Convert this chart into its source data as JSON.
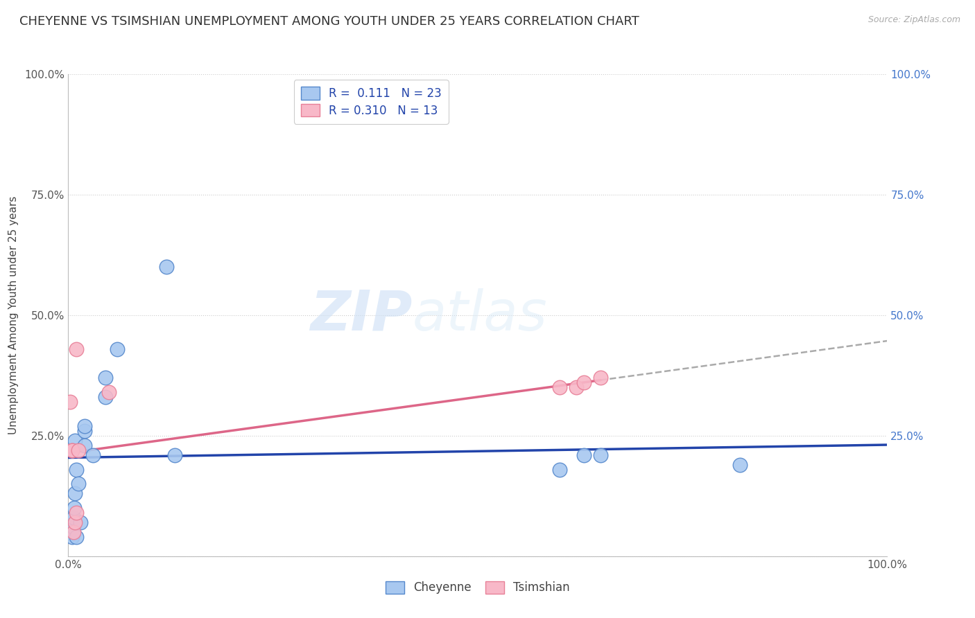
{
  "title": "CHEYENNE VS TSIMSHIAN UNEMPLOYMENT AMONG YOUTH UNDER 25 YEARS CORRELATION CHART",
  "source": "Source: ZipAtlas.com",
  "ylabel": "Unemployment Among Youth under 25 years",
  "xlim": [
    0.0,
    1.0
  ],
  "ylim": [
    0.0,
    1.0
  ],
  "watermark_zip": "ZIP",
  "watermark_atlas": "atlas",
  "cheyenne_color": "#a8c8f0",
  "tsimshian_color": "#f8b8c8",
  "cheyenne_edge_color": "#5588cc",
  "tsimshian_edge_color": "#e88098",
  "cheyenne_line_color": "#2244aa",
  "tsimshian_line_color": "#dd6688",
  "R_cheyenne": 0.111,
  "N_cheyenne": 23,
  "R_tsimshian": 0.31,
  "N_tsimshian": 13,
  "cheyenne_x": [
    0.005,
    0.006,
    0.006,
    0.007,
    0.008,
    0.008,
    0.01,
    0.01,
    0.012,
    0.015,
    0.02,
    0.02,
    0.02,
    0.03,
    0.045,
    0.045,
    0.06,
    0.12,
    0.13,
    0.6,
    0.63,
    0.65,
    0.82
  ],
  "cheyenne_y": [
    0.04,
    0.06,
    0.08,
    0.1,
    0.13,
    0.24,
    0.04,
    0.18,
    0.15,
    0.07,
    0.23,
    0.26,
    0.27,
    0.21,
    0.33,
    0.37,
    0.43,
    0.6,
    0.21,
    0.18,
    0.21,
    0.21,
    0.19
  ],
  "tsimshian_x": [
    0.002,
    0.005,
    0.005,
    0.006,
    0.008,
    0.01,
    0.01,
    0.012,
    0.05,
    0.6,
    0.62,
    0.63,
    0.65
  ],
  "tsimshian_y": [
    0.32,
    0.22,
    0.22,
    0.05,
    0.07,
    0.43,
    0.09,
    0.22,
    0.34,
    0.35,
    0.35,
    0.36,
    0.37
  ],
  "background_color": "#ffffff",
  "grid_color": "#cccccc",
  "title_fontsize": 13,
  "axis_label_fontsize": 11,
  "tick_fontsize": 11,
  "legend_fontsize": 12,
  "source_fontsize": 9
}
